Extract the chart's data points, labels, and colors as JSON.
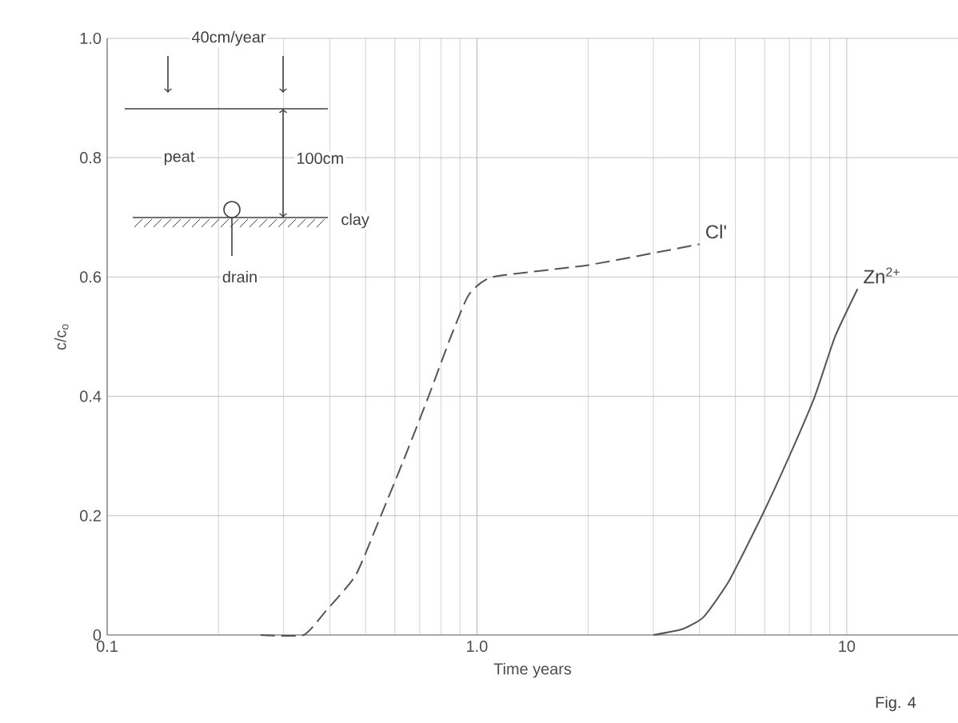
{
  "chart_data": {
    "type": "line",
    "xlabel": "Time years",
    "ylabel": "c/c$_{o}$",
    "log": "x",
    "grid": true,
    "marker": "none",
    "xlim": [
      0.1,
      20
    ],
    "xticks": [
      0.1,
      {
        "value": 1,
        "label": "1.0"
      },
      10
    ],
    "ylim": [
      0,
      1
    ],
    "yticks": [
      0,
      0.2,
      0.4,
      0.6,
      0.8,
      {
        "value": 1,
        "label": "1.0"
      }
    ],
    "series": [
      {
        "name": "Cl'",
        "color": "#555555",
        "line_style": "dashed",
        "x": [
          0.26,
          0.34,
          0.39,
          0.47,
          0.55,
          0.64,
          0.74,
          0.85,
          0.95,
          1.1,
          2.0,
          4.0
        ],
        "values": [
          0,
          0,
          0.04,
          0.1,
          0.2,
          0.3,
          0.4,
          0.5,
          0.57,
          0.6,
          0.62,
          0.655
        ]
      },
      {
        "name": "Zn$^{2+}$",
        "color": "#555555",
        "line_style": "solid",
        "x": [
          3.0,
          3.6,
          4.1,
          4.8,
          5.9,
          7.0,
          8.2,
          9.3,
          10.7
        ],
        "values": [
          0,
          0.01,
          0.03,
          0.09,
          0.2,
          0.3,
          0.4,
          0.5,
          0.58
        ]
      }
    ],
    "annotations": [
      "40cm/year",
      "peat",
      "100cm",
      "clay",
      "drain",
      "Fig. 4"
    ]
  }
}
